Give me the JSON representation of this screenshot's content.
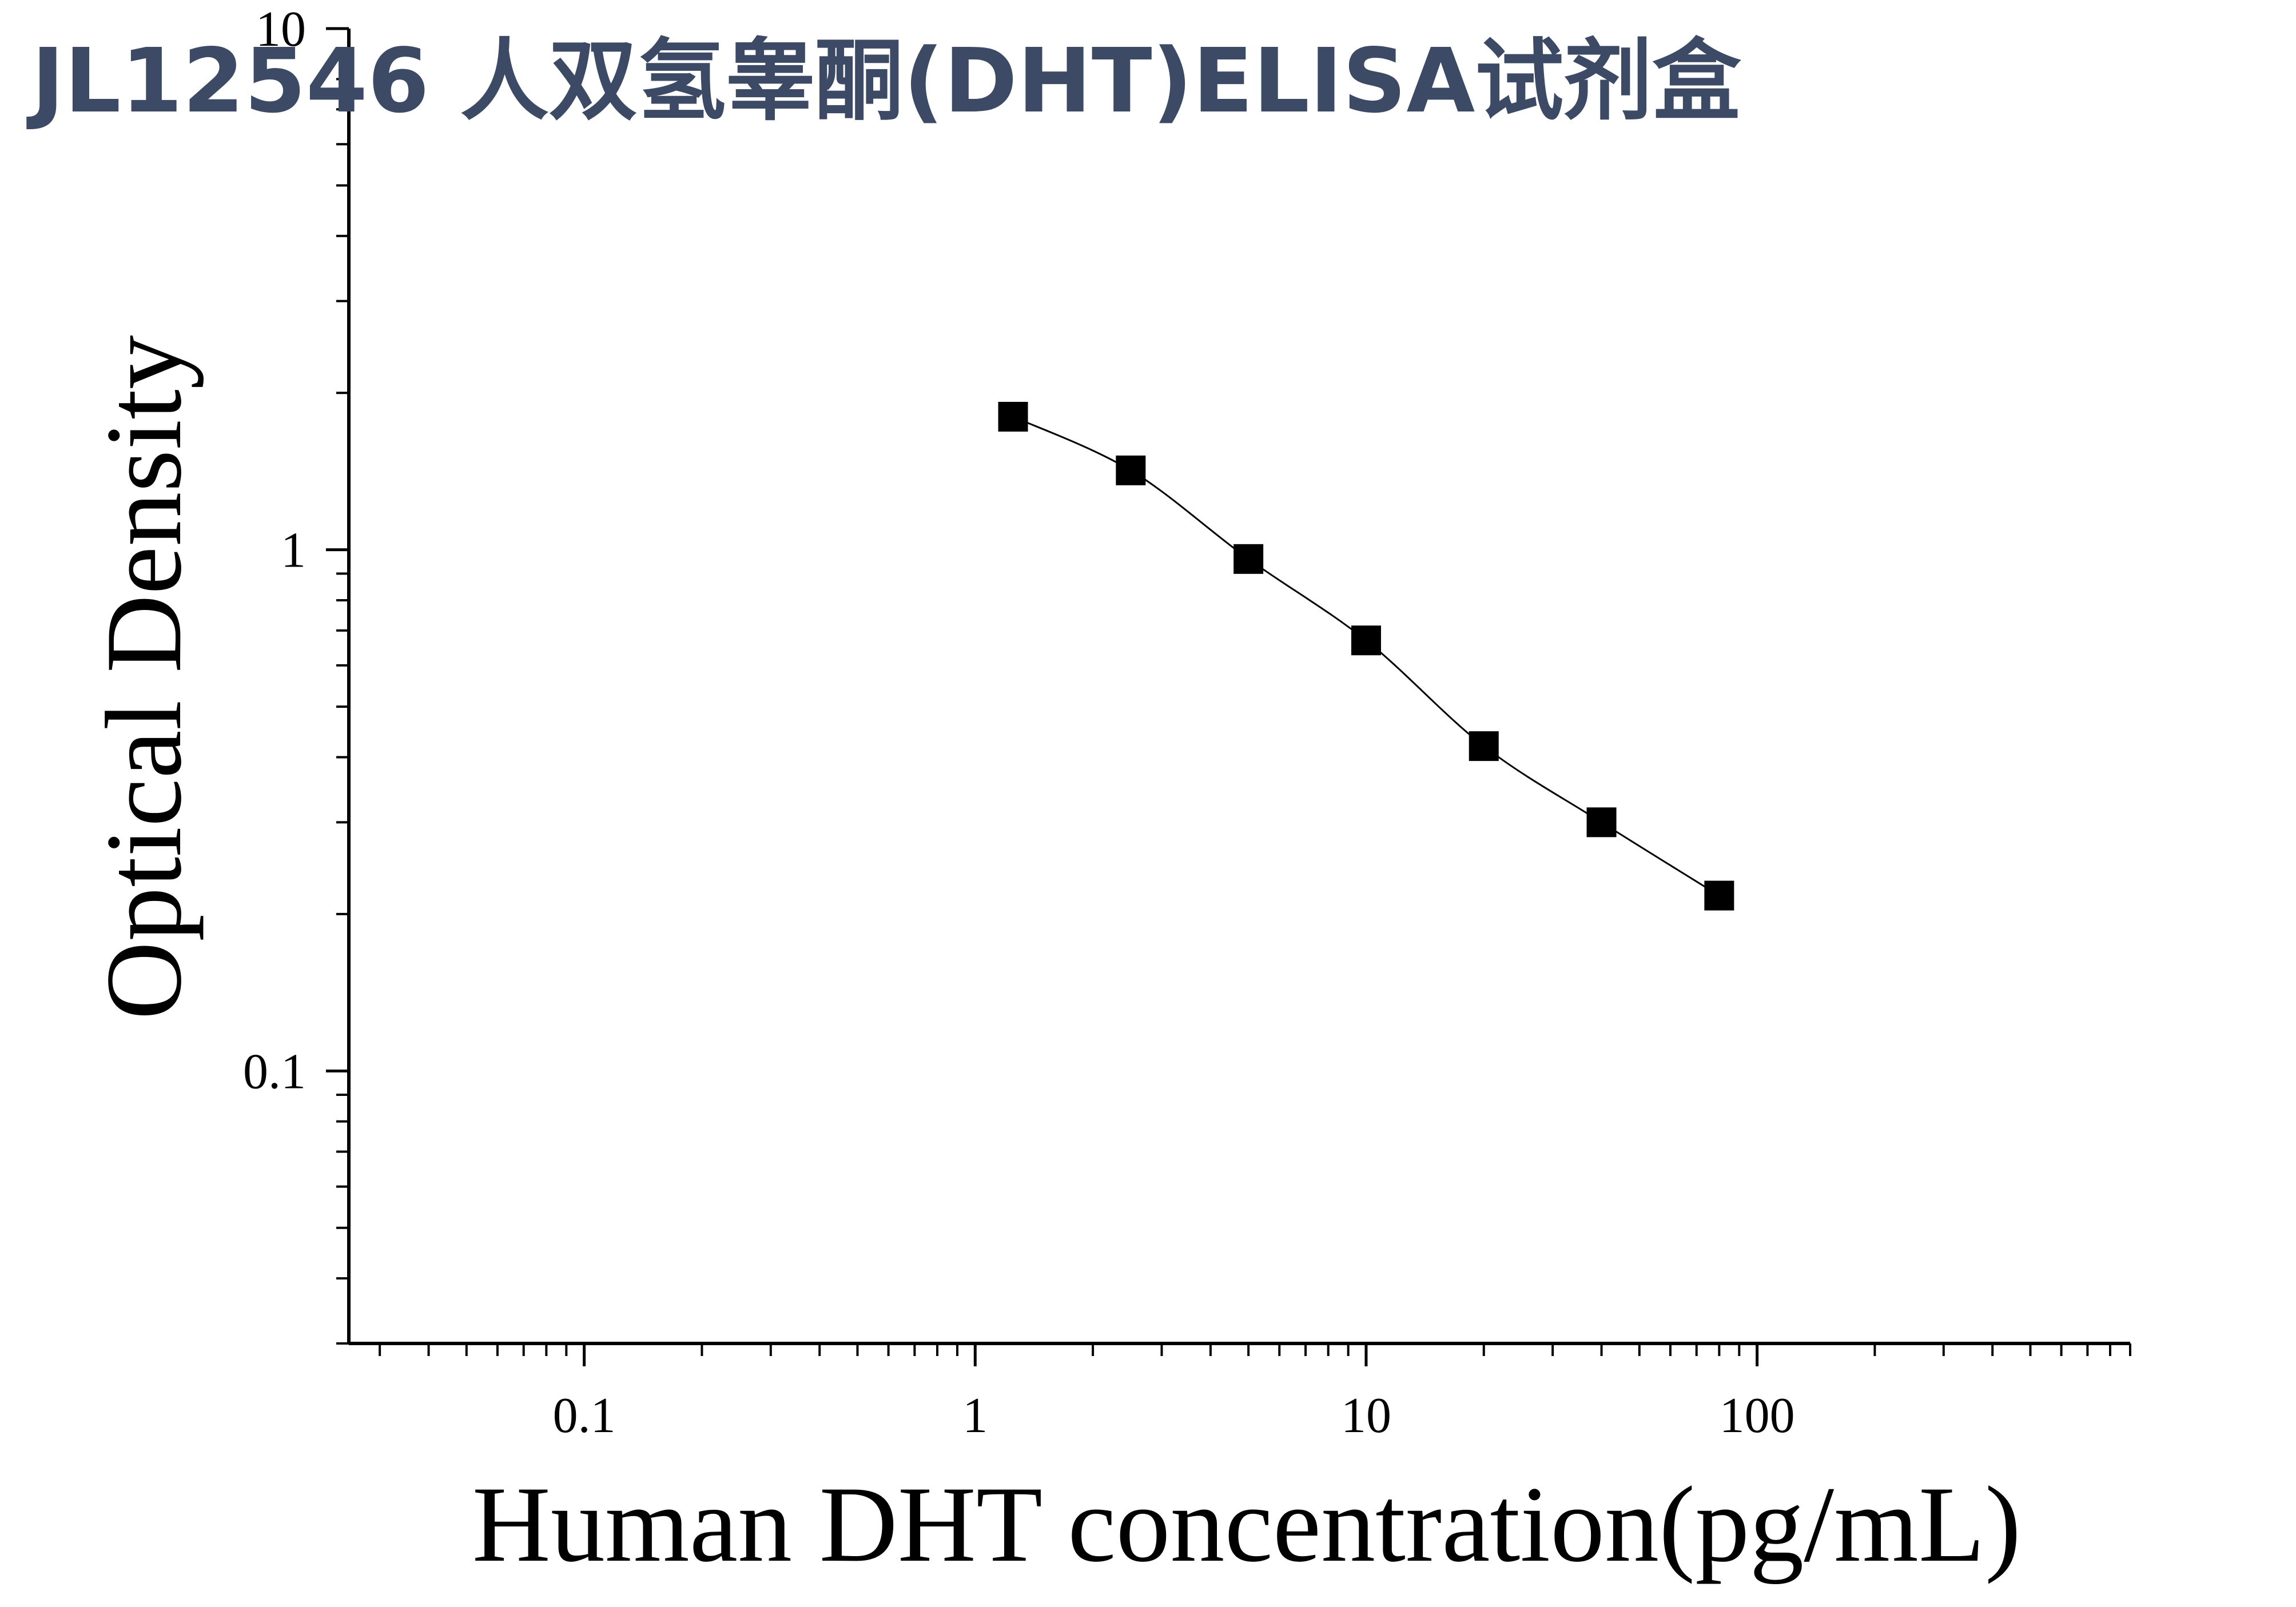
{
  "chart_data": {
    "type": "scatter",
    "title": "JL12546 人双氢睾酮(DHT)ELISA试剂盒",
    "xlabel": "Human DHT concentration(pg/mL)",
    "ylabel": "Optical Density",
    "x_scale": "log",
    "y_scale": "log",
    "xlim": [
      0.025,
      900
    ],
    "ylim": [
      0.03,
      10
    ],
    "x_tick_labels": [
      {
        "value": 0.1,
        "label": "0.1"
      },
      {
        "value": 1,
        "label": "1"
      },
      {
        "value": 10,
        "label": "10"
      },
      {
        "value": 100,
        "label": "100"
      }
    ],
    "y_tick_labels": [
      {
        "value": 0.1,
        "label": "0.1"
      },
      {
        "value": 1,
        "label": "1"
      },
      {
        "value": 10,
        "label": "10"
      }
    ],
    "grid": false,
    "legend": "none",
    "colors": {
      "marker": "#000000",
      "axis": "#000000",
      "title": "#3d4a66",
      "curve": "#000000"
    },
    "series": [
      {
        "marker": "square",
        "x": [
          1.25,
          2.5,
          5,
          10,
          20,
          40,
          80
        ],
        "y": [
          1.8,
          1.42,
          0.96,
          0.67,
          0.42,
          0.3,
          0.217
        ],
        "fit_curve": true
      }
    ]
  }
}
